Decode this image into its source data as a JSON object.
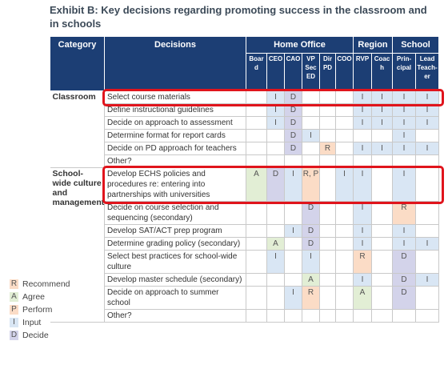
{
  "header": {
    "title": "Exhibit B: Key decisions regarding promoting success in the classroom and in schools"
  },
  "table": {
    "columns": {
      "category": "Category",
      "decisions": "Decisions"
    },
    "groups": [
      {
        "name": "Home Office",
        "roles": [
          "Board",
          "CEO",
          "CAO",
          "VP Sec ED",
          "Dir PD",
          "COO"
        ]
      },
      {
        "name": "Region",
        "roles": [
          "RVP",
          "Coach"
        ]
      },
      {
        "name": "School",
        "roles": [
          "Prin-cipal",
          "Lead Teach-er"
        ]
      }
    ],
    "sections": [
      {
        "category": "Classroom",
        "rows": [
          {
            "decision": "Select course materials",
            "highlighted": true,
            "cells": [
              null,
              "I",
              "D",
              null,
              null,
              null,
              "I",
              "I",
              "I",
              "I"
            ]
          },
          {
            "decision": "Define instructional guidelines",
            "cells": [
              null,
              "I",
              "D",
              null,
              null,
              null,
              "I",
              "I",
              "I",
              "I"
            ]
          },
          {
            "decision": "Decide on approach to assessment",
            "cells": [
              null,
              "I",
              "D",
              null,
              null,
              null,
              "I",
              "I",
              "I",
              "I"
            ]
          },
          {
            "decision": "Determine format for report cards",
            "cells": [
              null,
              null,
              "D",
              "I",
              null,
              null,
              null,
              null,
              "I",
              null
            ]
          },
          {
            "decision": "Decide on PD approach for teachers",
            "cells": [
              null,
              null,
              "D",
              null,
              "R",
              null,
              "I",
              "I",
              "I",
              "I"
            ]
          },
          {
            "decision": "Other?",
            "cells": [
              null,
              null,
              null,
              null,
              null,
              null,
              null,
              null,
              null,
              null
            ]
          }
        ]
      },
      {
        "category": "School-wide culture and management",
        "rows": [
          {
            "decision": "Develop ECHS policies and procedures re: entering into partnerships with universities",
            "highlighted": true,
            "cells": [
              "A",
              "D",
              "I",
              "R, P",
              null,
              "I",
              "I",
              null,
              "I",
              null
            ]
          },
          {
            "decision": "Decide on course selection and sequencing (secondary)",
            "cells": [
              null,
              null,
              null,
              "D",
              null,
              null,
              "I",
              null,
              "R",
              null
            ]
          },
          {
            "decision": "Develop SAT/ACT prep program",
            "cells": [
              null,
              null,
              "I",
              "D",
              null,
              null,
              "I",
              null,
              "I",
              null
            ]
          },
          {
            "decision": "Determine grading policy (secondary)",
            "cells": [
              null,
              "A",
              null,
              "D",
              null,
              null,
              "I",
              null,
              "I",
              "I"
            ]
          },
          {
            "decision": "Select best practices for school-wide culture",
            "cells": [
              null,
              "I",
              null,
              "I",
              null,
              null,
              "R",
              null,
              "D",
              null
            ]
          },
          {
            "decision": "Develop master schedule (secondary)",
            "cells": [
              null,
              null,
              null,
              "A",
              null,
              null,
              "I",
              null,
              "D",
              "I"
            ]
          },
          {
            "decision": "Decide on approach to summer school",
            "cells": [
              null,
              null,
              "I",
              "R",
              null,
              null,
              "A",
              null,
              "D",
              null
            ]
          },
          {
            "decision": "Other?",
            "cells": [
              null,
              null,
              null,
              null,
              null,
              null,
              null,
              null,
              null,
              null
            ]
          }
        ]
      }
    ]
  },
  "legend": [
    {
      "code": "R",
      "label": "Recommend",
      "color": "#fbdcc6"
    },
    {
      "code": "A",
      "label": "Agree",
      "color": "#e2eed5"
    },
    {
      "code": "P",
      "label": "Perform",
      "color": "#fbdcc6"
    },
    {
      "code": "I",
      "label": "Input",
      "color": "#d9e6f4"
    },
    {
      "code": "D",
      "label": "Decide",
      "color": "#d3d3ea"
    }
  ]
}
